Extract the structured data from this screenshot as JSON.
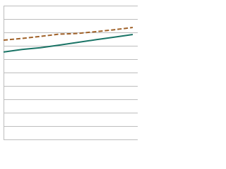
{
  "chart_data": {
    "type": "line",
    "categories": [
      null,
      null,
      null,
      null,
      null,
      null,
      null,
      null
    ],
    "series": [
      {
        "color": "#1a7466",
        "dash": false,
        "values": [
          65.3,
          67.2,
          68.5,
          70.5,
          72.5,
          74.5,
          76.5,
          78.4
        ]
      },
      {
        "color": "#a0622a",
        "dash": true,
        "values": [
          74.2,
          75.5,
          77.0,
          78.7,
          79.2,
          80.5,
          82.0,
          83.7
        ]
      }
    ],
    "ylim": [
      0,
      100
    ],
    "yticks": [
      0,
      10,
      20,
      30,
      40,
      50,
      60,
      70,
      80,
      90,
      100
    ],
    "grid": true
  }
}
